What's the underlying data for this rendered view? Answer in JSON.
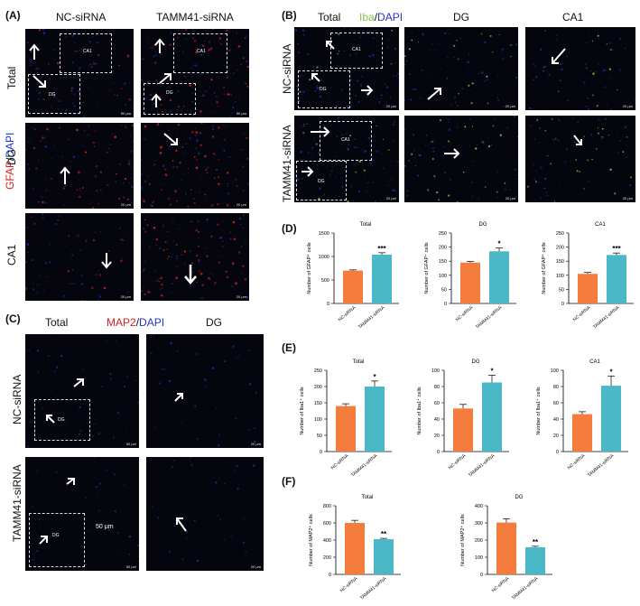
{
  "labels": {
    "A": "(A)",
    "B": "(B)",
    "C": "(C)",
    "D": "(D)",
    "E": "(E)",
    "F": "(F)",
    "nc": "NC-siRNA",
    "tamm": "TAMM41-siRNA",
    "total": "Total",
    "dg": "DG",
    "ca1": "CA1",
    "gfap": "GFAP",
    "iba": "Iba",
    "map2": "MAP2",
    "slash": "/",
    "dapi": "DAPI",
    "box_ca1": "CA1",
    "box_dg": "DG",
    "scale50": "50 μm",
    "scale20": "20 μm",
    "scale50_big": "50 μm"
  },
  "colors": {
    "nc_bar": "#f47c3c",
    "tamm_bar": "#4bb8c8",
    "gfap_red": "#d62020",
    "iba_green": "#7ac943",
    "dapi_blue": "#2233cc",
    "map2_red": "#d62020"
  },
  "chart_data": [
    {
      "id": "D-total",
      "type": "bar",
      "title": "Total",
      "ylabel": "Number of GFAP⁺ cells",
      "categories": [
        "NC-siRNA",
        "TAMM41-siRNA"
      ],
      "values": [
        700,
        1040
      ],
      "errors": [
        15,
        40
      ],
      "ylim": [
        0,
        1500
      ],
      "yticks": [
        0,
        500,
        1000,
        1500
      ],
      "sig": "***"
    },
    {
      "id": "D-dg",
      "type": "bar",
      "title": "DG",
      "ylabel": "Number of GFAP⁺ cells",
      "categories": [
        "NC-siRNA",
        "TAMM41-siRNA"
      ],
      "values": [
        145,
        185
      ],
      "errors": [
        4,
        12
      ],
      "ylim": [
        0,
        250
      ],
      "yticks": [
        0,
        50,
        100,
        150,
        200,
        250
      ],
      "sig": "*"
    },
    {
      "id": "D-ca1",
      "type": "bar",
      "title": "CA1",
      "ylabel": "Number of GFAP⁺ cells",
      "categories": [
        "NC-siRNA",
        "TAMM41-siRNA"
      ],
      "values": [
        105,
        172
      ],
      "errors": [
        5,
        7
      ],
      "ylim": [
        0,
        250
      ],
      "yticks": [
        0,
        50,
        100,
        150,
        200,
        250
      ],
      "sig": "***"
    },
    {
      "id": "E-total",
      "type": "bar",
      "title": "Total",
      "ylabel": "Number of Iba1⁺ cells",
      "categories": [
        "NC-siRNA",
        "TAMM41-siRNA"
      ],
      "values": [
        140,
        200
      ],
      "errors": [
        7,
        17
      ],
      "ylim": [
        0,
        250
      ],
      "yticks": [
        0,
        50,
        100,
        150,
        200,
        250
      ],
      "sig": "*"
    },
    {
      "id": "E-dg",
      "type": "bar",
      "title": "DG",
      "ylabel": "Number of Iba1⁺ cells",
      "categories": [
        "NC-siRNA",
        "TAMM41-siRNA"
      ],
      "values": [
        53,
        85
      ],
      "errors": [
        5,
        9
      ],
      "ylim": [
        0,
        100
      ],
      "yticks": [
        0,
        20,
        40,
        60,
        80,
        100
      ],
      "sig": "*"
    },
    {
      "id": "E-ca1",
      "type": "bar",
      "title": "CA1",
      "ylabel": "Number of Iba1⁺ cells",
      "categories": [
        "NC-siRNA",
        "TAMM41-siRNA"
      ],
      "values": [
        46,
        81
      ],
      "errors": [
        3,
        12
      ],
      "ylim": [
        0,
        100
      ],
      "yticks": [
        0,
        20,
        40,
        60,
        80,
        100
      ],
      "sig": "*"
    },
    {
      "id": "F-total",
      "type": "bar",
      "title": "Total",
      "ylabel": "Number of MAP2⁺ cells",
      "categories": [
        "NC-siRNA",
        "TAMM41-siRNA"
      ],
      "values": [
        600,
        410
      ],
      "errors": [
        30,
        10
      ],
      "ylim": [
        0,
        800
      ],
      "yticks": [
        0,
        200,
        400,
        600,
        800
      ],
      "sig": "**"
    },
    {
      "id": "F-dg",
      "type": "bar",
      "title": "DG",
      "ylabel": "Number of MAP2⁺ cells",
      "categories": [
        "NC-siRNA",
        "TAMM41-siRNA"
      ],
      "values": [
        302,
        158
      ],
      "errors": [
        22,
        6
      ],
      "ylim": [
        0,
        400
      ],
      "yticks": [
        0,
        100,
        200,
        300,
        400
      ],
      "sig": "**"
    }
  ]
}
